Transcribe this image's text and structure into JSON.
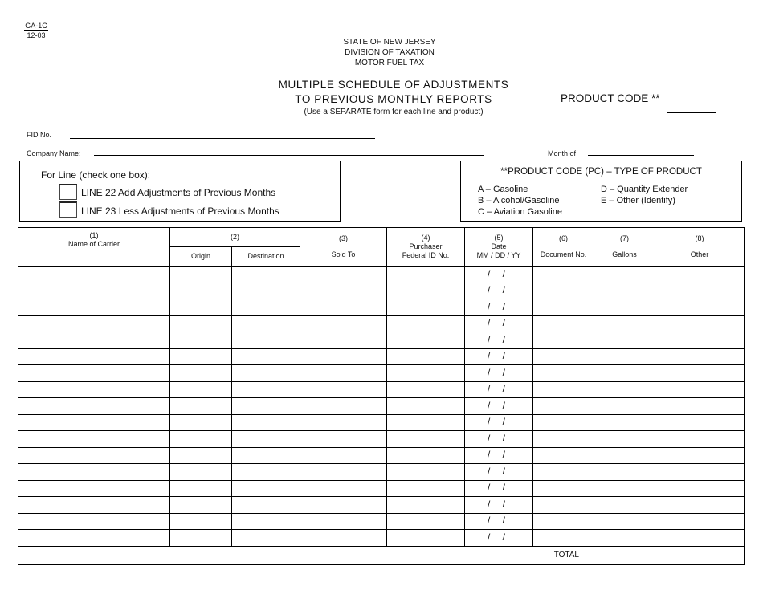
{
  "form": {
    "number": "GA-1C",
    "revision": "12-03"
  },
  "agency": {
    "line1": "STATE OF NEW JERSEY",
    "line2": "DIVISION OF TAXATION",
    "line3": "MOTOR FUEL TAX"
  },
  "title": {
    "line1": "MULTIPLE SCHEDULE OF ADJUSTMENTS",
    "line2": "TO PREVIOUS MONTHLY REPORTS",
    "note": "(Use a SEPARATE form for each line and product)"
  },
  "product_code_label": "PRODUCT CODE **",
  "fields": {
    "fid": "FID No.",
    "company": "Company Name:",
    "month": "Month of"
  },
  "for_line": {
    "heading": "For Line (check one box):",
    "line22": "LINE 22 Add Adjustments of Previous Months",
    "line23": "LINE 23 Less Adjustments of Previous Months"
  },
  "product_types": {
    "heading": "**PRODUCT CODE (PC) – TYPE OF PRODUCT",
    "a": "A – Gasoline",
    "b": "B – Alcohol/Gasoline",
    "c": "C – Aviation Gasoline",
    "d": "D – Quantity Extender",
    "e": "E – Other (Identify)"
  },
  "table": {
    "col1_num": "(1)",
    "col1": "Name of Carrier",
    "col2_num": "(2)",
    "col2a": "Origin",
    "col2b": "Destination",
    "col3_num": "(3)",
    "col3": "Sold To",
    "col4_num": "(4)",
    "col4a": "Purchaser",
    "col4b": "Federal ID No.",
    "col5_num": "(5)",
    "col5a": "Date",
    "col5b": "MM / DD / YY",
    "col6_num": "(6)",
    "col6": "Document No.",
    "col7_num": "(7)",
    "col7": "Gallons",
    "col8_num": "(8)",
    "col8": "Other",
    "date_placeholder": "/ /",
    "row_count": 17,
    "total_label": "TOTAL"
  }
}
